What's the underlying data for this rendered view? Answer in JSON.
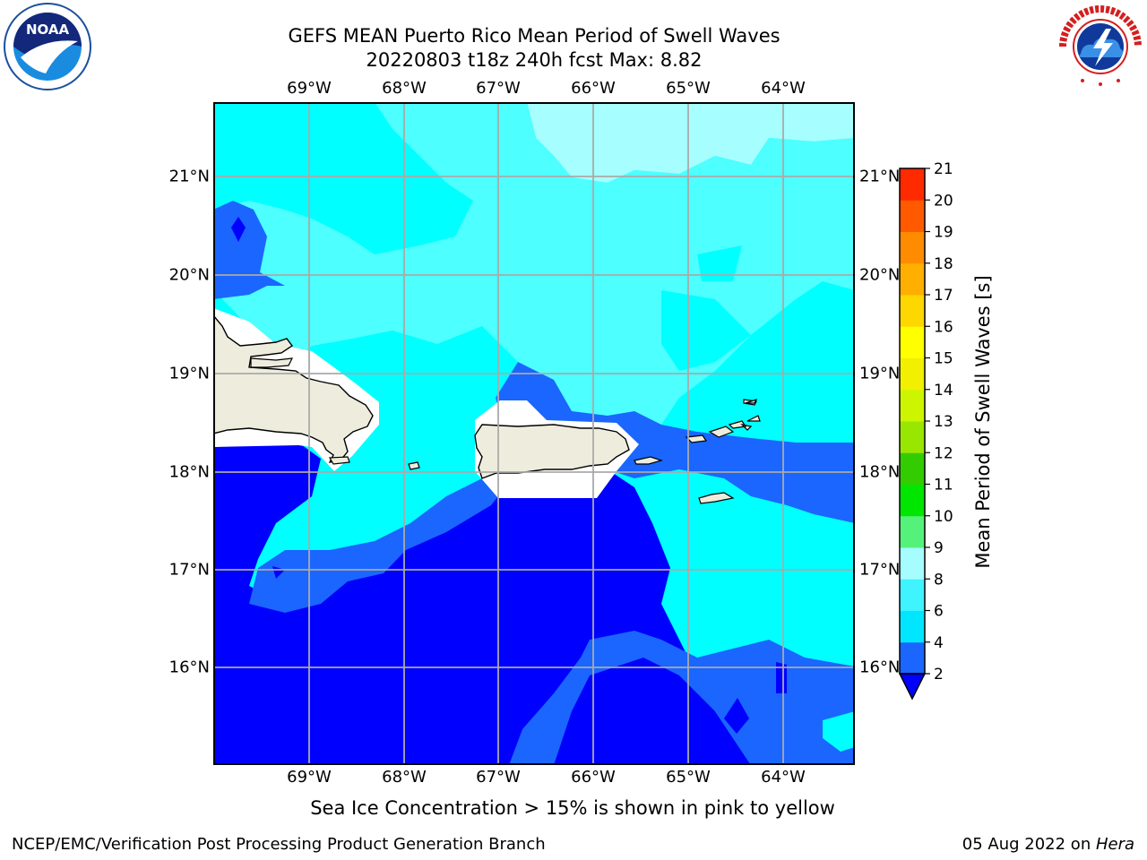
{
  "title": {
    "line1": "GEFS MEAN Puerto Rico Mean Period of Swell Waves",
    "line2": "20220803 t18z 240h fcst   Max: 8.82"
  },
  "axes": {
    "lon_labels": [
      "69°W",
      "68°W",
      "67°W",
      "66°W",
      "65°W",
      "64°W"
    ],
    "lat_labels": [
      "21°N",
      "20°N",
      "19°N",
      "18°N",
      "17°N",
      "16°N"
    ]
  },
  "colorbar": {
    "label": "Mean Period of Swell Waves [s]",
    "ticks": [
      "2",
      "4",
      "6",
      "8",
      "9",
      "10",
      "11",
      "12",
      "13",
      "14",
      "15",
      "16",
      "17",
      "18",
      "19",
      "20",
      "21"
    ],
    "colors": [
      "#1a66ff",
      "#00e6ff",
      "#3ff3ff",
      "#a6fdff",
      "#54f27a",
      "#00e600",
      "#33cc00",
      "#99e600",
      "#cdf500",
      "#f0f000",
      "#ffff00",
      "#ffd700",
      "#ffaf00",
      "#ff8c00",
      "#ff5a00",
      "#ff2a00",
      "#ff0000"
    ],
    "under_color": "#0000ff"
  },
  "footnote": "Sea Ice Concentration > 15% is shown in pink to yellow",
  "credit": {
    "left": "NCEP/EMC/Verification Post Processing Product Generation Branch",
    "right_date": "05 Aug 2022 on ",
    "right_host": "Hera"
  },
  "logos": {
    "noaa": "NOAA",
    "noaa_ring": "NATIONAL OCEANIC AND ATMOSPHERIC ADMINISTRATION · U.S. DEPARTMENT OF COMMERCE",
    "nws_ring": "NATIONAL WEATHER SERVICE"
  },
  "map_colors": {
    "land": "#eeeddd",
    "deep_blue": "#0000ff",
    "mid_blue": "#1a66ff",
    "cyan": "#00ffff",
    "light_cyan": "#4dffff",
    "pale_cyan": "#a6feff"
  }
}
